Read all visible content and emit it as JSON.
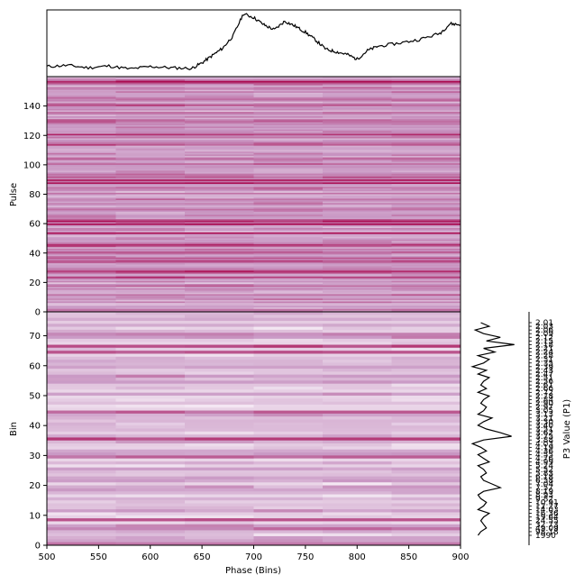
{
  "chart_data": {
    "type": "heatmap",
    "colormap": "white-to-crimson",
    "colors": {
      "low": "#ffffff",
      "mid": "#c58bbd",
      "high": "#a50a4d",
      "line": "#000000"
    },
    "profile": {
      "type": "line",
      "x": [
        500,
        520,
        540,
        560,
        580,
        600,
        620,
        640,
        650,
        660,
        670,
        680,
        690,
        700,
        710,
        720,
        730,
        740,
        750,
        760,
        770,
        780,
        790,
        800,
        810,
        820,
        840,
        860,
        880,
        890,
        900
      ],
      "y": [
        0.12,
        0.14,
        0.1,
        0.13,
        0.08,
        0.12,
        0.1,
        0.09,
        0.18,
        0.3,
        0.42,
        0.62,
        0.98,
        0.92,
        0.8,
        0.72,
        0.86,
        0.78,
        0.68,
        0.55,
        0.4,
        0.36,
        0.32,
        0.24,
        0.38,
        0.45,
        0.5,
        0.56,
        0.66,
        0.82,
        0.8
      ]
    },
    "pulse_stack": {
      "xlim": [
        500,
        900
      ],
      "ylim": [
        0,
        160
      ],
      "ylabel": "Pulse",
      "yticks": [
        "0",
        "20",
        "40",
        "60",
        "80",
        "100",
        "120",
        "140"
      ]
    },
    "bin_stack": {
      "xlim": [
        500,
        900
      ],
      "ylim": [
        0,
        78
      ],
      "xlabel": "Phase (Bins)",
      "ylabel": "Bin",
      "xticks": [
        "500",
        "550",
        "600",
        "650",
        "700",
        "750",
        "800",
        "850",
        "900"
      ],
      "yticks": [
        "0",
        "10",
        "20",
        "30",
        "40",
        "50",
        "60",
        "70"
      ]
    },
    "p3_spectrum": {
      "type": "line",
      "ylabel": "P3 Value (P1)",
      "tick_labels": [
        "2.01",
        "2.03",
        "2.06",
        "2.09",
        "2.12",
        "2.15",
        "2.18",
        "2.21",
        "2.24",
        "2.28",
        "2.31",
        "2.35",
        "2.39",
        "2.43",
        "2.47",
        "2.51",
        "2.56",
        "2.61",
        "2.66",
        "2.72",
        "2.78",
        "2.84",
        "2.90",
        "2.97",
        "3.05",
        "3.13",
        "3.21",
        "3.30",
        "3.40",
        "3.51",
        "3.62",
        "3.75",
        "3.88",
        "4.03",
        "4.19",
        "4.36",
        "4.55",
        "4.76",
        "4.99",
        "5.24",
        "5.52",
        "5.83",
        "6.18",
        "6.58",
        "7.04",
        "7.57",
        "8.19",
        "8.93",
        "9.82",
        "10.91",
        "12.27",
        "14.03",
        "16.36",
        "19.64",
        "24.55",
        "32.73",
        "49.09",
        "98.18",
        "1990"
      ],
      "values": [
        0.25,
        0.4,
        0.15,
        0.3,
        0.6,
        0.35,
        0.85,
        0.3,
        0.5,
        0.2,
        0.4,
        0.3,
        0.1,
        0.35,
        0.2,
        0.4,
        0.3,
        0.25,
        0.35,
        0.2,
        0.4,
        0.3,
        0.25,
        0.35,
        0.3,
        0.2,
        0.45,
        0.3,
        0.2,
        0.35,
        0.6,
        0.8,
        0.3,
        0.1,
        0.25,
        0.35,
        0.2,
        0.3,
        0.4,
        0.2,
        0.3,
        0.35,
        0.25,
        0.3,
        0.45,
        0.6,
        0.3,
        0.2,
        0.25,
        0.35,
        0.3,
        0.2,
        0.4,
        0.3,
        0.25,
        0.3,
        0.35,
        0.25,
        0.2
      ]
    }
  }
}
